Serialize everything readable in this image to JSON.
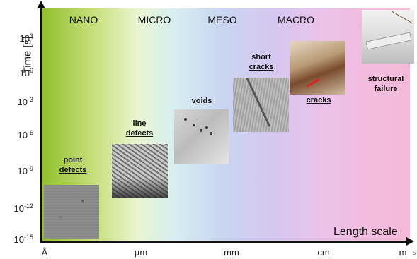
{
  "diagram": {
    "y_axis": {
      "title": "Time [s]",
      "ticks": [
        {
          "base": "10",
          "exp": "3"
        },
        {
          "base": "10",
          "exp": "0"
        },
        {
          "base": "10",
          "exp": "-3"
        },
        {
          "base": "10",
          "exp": "-6"
        },
        {
          "base": "10",
          "exp": "-9"
        },
        {
          "base": "10",
          "exp": "-12"
        },
        {
          "base": "10",
          "exp": "-15"
        }
      ]
    },
    "x_axis": {
      "title": "Length scale",
      "ticks": [
        "Å",
        "µm",
        "mm",
        "cm",
        "m"
      ],
      "subscript": "5"
    },
    "scales": [
      "NANO",
      "MICRO",
      "MESO",
      "MACRO"
    ],
    "phenomena": [
      {
        "lines": [
          "point",
          "defects"
        ],
        "underlined": "defects"
      },
      {
        "lines": [
          "line",
          "defects"
        ],
        "underlined": "defects"
      },
      {
        "lines": [
          "voids"
        ],
        "underlined": "voids"
      },
      {
        "lines": [
          "short",
          "cracks"
        ],
        "underlined": "cracks"
      },
      {
        "lines": [
          "cracks"
        ],
        "underlined": "cracks"
      },
      {
        "lines": [
          "structural",
          "failure"
        ],
        "underlined": "failure"
      }
    ],
    "colors": {
      "gradient_start": "#8fbf2c",
      "gradient_mid": "#c9d4f1",
      "gradient_end": "#f5b9d8",
      "axis": "#111111"
    }
  }
}
